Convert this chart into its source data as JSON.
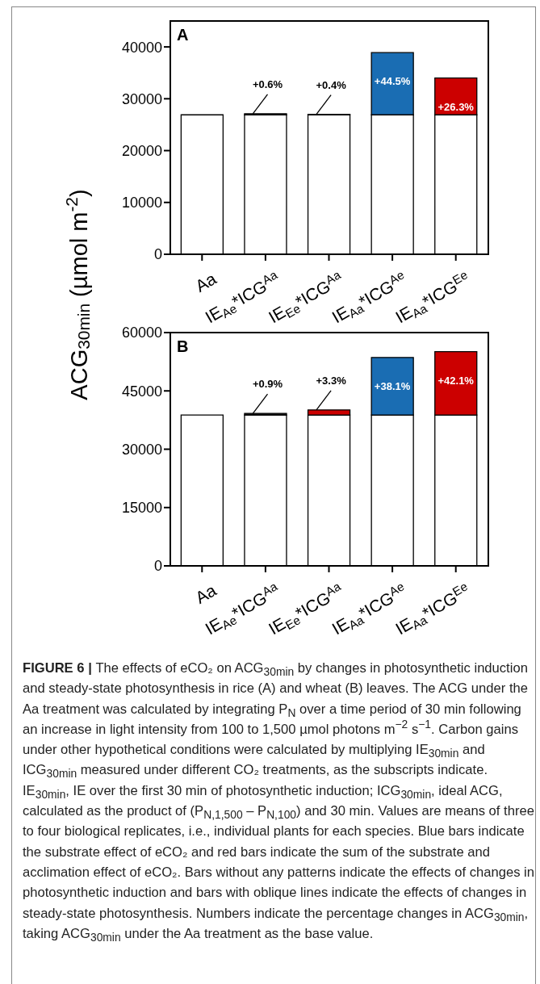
{
  "chart_data": [
    {
      "type": "bar",
      "title": "A",
      "ylabel": "ACG$_{30min}$ (µmol m$^{-2}$)",
      "categories": [
        "Aa",
        "IE$_{Ae}$*ICG$^{Aa}$",
        "IE$_{Ee}$*ICG$^{Aa}$",
        "IE$_{Aa}$*ICG$^{Ae}$",
        "IE$_{Aa}$*ICG$^{Ee}$"
      ],
      "stacked": true,
      "ylim": [
        0,
        45000
      ],
      "yticks": [
        0,
        10000,
        20000,
        30000,
        40000
      ],
      "series": [
        {
          "color": "#ffffff",
          "values": [
            26900,
            26900,
            26900,
            26900,
            26900
          ]
        },
        {
          "colors": [
            "#000000",
            "#000000",
            "#000000",
            "#1a6db3",
            "#cc0000"
          ],
          "values": [
            null,
            200,
            100,
            12000,
            7100
          ]
        }
      ],
      "annotations": [
        {
          "text": "+0.6%",
          "x": "IE$_{Ae}$*ICG$^{Aa}$",
          "y": 27100
        },
        {
          "text": "+0.4%",
          "x": "IE$_{Ee}$*ICG$^{Aa}$",
          "y": 27000
        },
        {
          "text": "+44.5%",
          "x": "IE$_{Aa}$*ICG$^{Ae}$",
          "y": 38900
        },
        {
          "text": "+26.3%",
          "x": "IE$_{Aa}$*ICG$^{Ee}$",
          "y": 34000
        }
      ]
    },
    {
      "type": "bar",
      "title": "B",
      "categories": [
        "Aa",
        "IE$_{Ae}$*ICG$^{Aa}$",
        "IE$_{Ee}$*ICG$^{Aa}$",
        "IE$_{Aa}$*ICG$^{Ae}$",
        "IE$_{Aa}$*ICG$^{Ee}$"
      ],
      "stacked": true,
      "ylim": [
        0,
        60000
      ],
      "yticks": [
        0,
        15000,
        30000,
        45000,
        60000
      ],
      "series": [
        {
          "color": "#ffffff",
          "values": [
            38800,
            38800,
            38800,
            38800,
            38800
          ]
        },
        {
          "colors": [
            "#000000",
            "#000000",
            "#cc0000",
            "#1a6db3",
            "#cc0000"
          ],
          "values": [
            null,
            400,
            1300,
            14800,
            16300
          ]
        }
      ],
      "annotations": [
        {
          "text": "+0.9%",
          "x": "IE$_{Ae}$*ICG$^{Aa}$",
          "y": 39200
        },
        {
          "text": "+3.3%",
          "x": "IE$_{Ee}$*ICG$^{Aa}$",
          "y": 40100
        },
        {
          "text": "+38.1%",
          "x": "IE$_{Aa}$*ICG$^{Ae}$",
          "y": 53600
        },
        {
          "text": "+42.1%",
          "x": "IE$_{Aa}$*ICG$^{Ee}$",
          "y": 55100
        },
        "FIGURE 6 |",
        "The effects of eCO₂ on ACG$_{30min}$ by changes in photosynthetic induction and steady-state photosynthesis in rice (A) and wheat (B) leaves. The ACG under the Aa treatment was calculated by integrating P$_{N}$ over a time period of 30 min following an increase in light intensity from 100 to 1,500 µmol photons m$^{−2}$ s$^{−1}$. Carbon gains under other hypothetical conditions were calculated by multiplying IE$_{30min}$ and ICG$_{30min}$ measured under different CO₂ treatments, as the subscripts indicate. IE$_{30min}$, IE over the first 30 min of photosynthetic induction; ICG$_{30min}$, ideal ACG, calculated as the product of (P$_{N,1,500}$ – P$_{N,100}$) and 30 min. Values are means of three to four biological replicates, i.e., individual plants for each species. Blue bars indicate the substrate effect of eCO₂ and red bars indicate the sum of the substrate and acclimation effect of eCO₂. Bars without any patterns indicate the effects of changes in photosynthetic induction and bars with oblique lines indicate the effects of changes in steady-state photosynthesis. Numbers indicate the percentage changes in ACG$_{30min}$, taking ACG$_{30min}$ under the Aa treatment as the base value."
      ]
    }
  ]
}
